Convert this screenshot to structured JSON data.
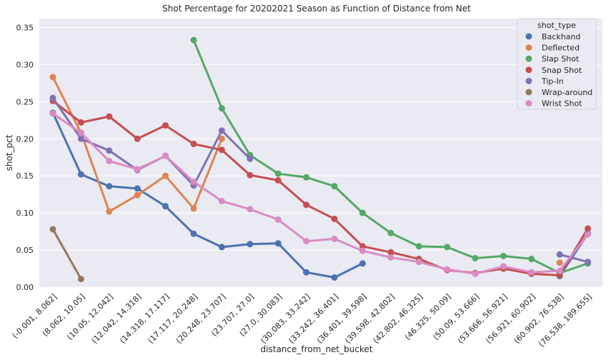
{
  "chart_data": {
    "type": "line",
    "title": "Shot Percentage for 20202021 Season as Function of Distance from Net",
    "xlabel": "distance_from_net_bucket",
    "ylabel": "shot_pct",
    "categories": [
      "(-0.001, 8.062]",
      "(8.062, 10.05]",
      "(10.05, 12.042]",
      "(12.042, 14.318]",
      "(14.318, 17.117]",
      "(17.117, 20.248]",
      "(20.248, 23.707]",
      "(23.707, 27.0]",
      "(27.0, 30.083]",
      "(30.083, 33.242]",
      "(33.242, 36.401]",
      "(36.401, 39.598]",
      "(39.598, 42.802]",
      "(42.802, 46.325]",
      "(46.325, 50.09]",
      "(50.09, 53.666]",
      "(53.666, 56.921]",
      "(56.921, 60.902]",
      "(60.902, 76.538]",
      "(76.538, 189.655]"
    ],
    "yticks": [
      "0.00",
      "0.05",
      "0.10",
      "0.15",
      "0.20",
      "0.25",
      "0.30",
      "0.35"
    ],
    "ylim": [
      0,
      0.362
    ],
    "grid": true,
    "legend": {
      "title": "shot_type",
      "position": "top-right"
    },
    "series": [
      {
        "name": "Backhand",
        "color": "#4c72b0",
        "values": [
          0.235,
          0.152,
          0.136,
          0.133,
          0.109,
          0.072,
          0.054,
          0.058,
          0.059,
          0.02,
          0.013,
          0.032,
          null,
          null,
          null,
          null,
          null,
          null,
          0.015,
          0.072
        ]
      },
      {
        "name": "Deflected",
        "color": "#dd8452",
        "values": [
          0.283,
          0.208,
          0.102,
          0.124,
          0.15,
          0.106,
          0.2,
          null,
          null,
          null,
          null,
          null,
          null,
          null,
          null,
          null,
          null,
          null,
          0.033,
          null
        ]
      },
      {
        "name": "Slap Shot",
        "color": "#55a868",
        "values": [
          null,
          null,
          null,
          null,
          null,
          0.333,
          0.241,
          0.178,
          0.153,
          0.148,
          0.136,
          0.1,
          0.073,
          0.055,
          0.054,
          0.039,
          0.042,
          0.038,
          0.019,
          0.032
        ]
      },
      {
        "name": "Snap Shot",
        "color": "#c44e52",
        "values": [
          0.251,
          0.222,
          0.23,
          0.2,
          0.218,
          0.193,
          0.185,
          0.151,
          0.144,
          0.111,
          0.092,
          0.055,
          0.047,
          0.038,
          0.023,
          0.019,
          0.025,
          0.018,
          0.016,
          0.079
        ]
      },
      {
        "name": "Tip-In",
        "color": "#8172b3",
        "values": [
          0.255,
          0.2,
          0.184,
          0.158,
          0.177,
          0.137,
          0.211,
          0.173,
          null,
          null,
          null,
          null,
          null,
          null,
          null,
          null,
          null,
          null,
          0.044,
          0.034
        ]
      },
      {
        "name": "Wrap-around",
        "color": "#937860",
        "values": [
          0.078,
          0.011,
          null,
          null,
          null,
          null,
          null,
          null,
          null,
          null,
          null,
          null,
          null,
          null,
          null,
          null,
          null,
          null,
          null,
          null
        ]
      },
      {
        "name": "Wrist Shot",
        "color": "#da8bc3",
        "values": [
          0.234,
          0.208,
          0.17,
          0.159,
          0.177,
          0.142,
          0.116,
          0.105,
          0.091,
          0.062,
          0.065,
          0.049,
          0.04,
          0.034,
          0.024,
          0.018,
          0.028,
          0.02,
          0.022,
          0.071
        ]
      }
    ]
  }
}
